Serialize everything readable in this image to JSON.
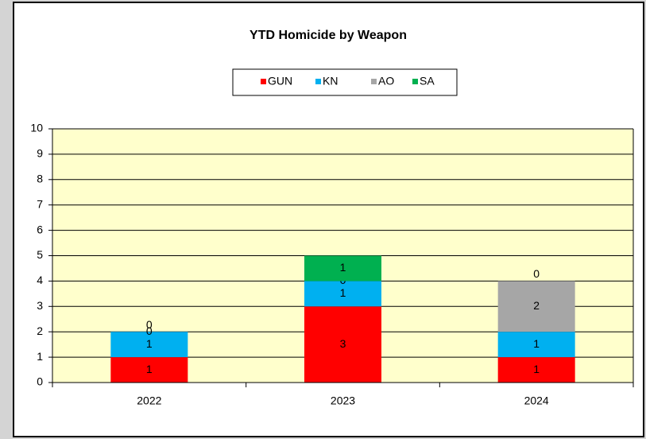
{
  "chart_data": {
    "type": "stacked_bar",
    "title": "YTD Homicide by Weapon",
    "categories": [
      "2022",
      "2023",
      "2024"
    ],
    "series": [
      {
        "name": "GUN",
        "color": "#ff0000",
        "values": [
          1,
          3,
          1
        ]
      },
      {
        "name": "KN",
        "color": "#00b0f0",
        "values": [
          1,
          1,
          1
        ]
      },
      {
        "name": "AO",
        "color": "#a6a6a6",
        "values": [
          0,
          0,
          2
        ]
      },
      {
        "name": "SA",
        "color": "#00b050",
        "values": [
          0,
          1,
          0
        ]
      }
    ],
    "ylim": [
      0,
      10
    ],
    "yticks": [
      0,
      1,
      2,
      3,
      4,
      5,
      6,
      7,
      8,
      9,
      10
    ],
    "grid": true,
    "legend": "top",
    "plot_background": "#ffffcc"
  }
}
